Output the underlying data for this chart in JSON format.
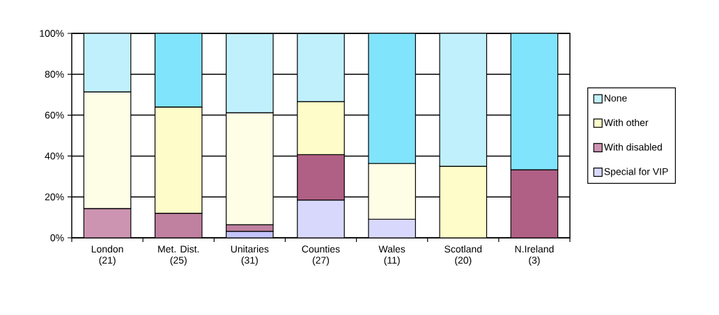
{
  "chart_data": {
    "type": "bar",
    "stacked": true,
    "categories": [
      "London\n(21)",
      "Met. Dist.\n(25)",
      "Unitaries\n(31)",
      "Counties\n(27)",
      "Wales\n(11)",
      "Scotland\n(20)",
      "N.Ireland\n(3)"
    ],
    "series": [
      {
        "name": "Special for VIP",
        "color": "#d8d8fc",
        "colors": [
          "#d8d8fc",
          "#d8d8fc",
          "#c4c4fc",
          "#d8d8fc",
          "#d8d8fc",
          "#d8d8fc",
          "#d8d8fc"
        ],
        "values": [
          0,
          0,
          3.2,
          18.5,
          9.1,
          0,
          0
        ]
      },
      {
        "name": "With disabled",
        "color": "#cc94b0",
        "colors": [
          "#cc94b0",
          "#c080a0",
          "#c080a0",
          "#b06084",
          "#b06084",
          "#b06084",
          "#b06084"
        ],
        "values": [
          14.3,
          12,
          3.2,
          22.2,
          0,
          0,
          33.3
        ]
      },
      {
        "name": "With other",
        "color": "#fefcc8",
        "colors": [
          "#fefee6",
          "#fefcc8",
          "#fefee6",
          "#fefcc8",
          "#fefee6",
          "#fefcc8",
          "#fefcc8"
        ],
        "values": [
          57.1,
          52,
          54.8,
          25.9,
          27.3,
          35,
          0
        ]
      },
      {
        "name": "None",
        "color": "#c0f0fc",
        "colors": [
          "#c0f0fc",
          "#80e4fc",
          "#c0f0fc",
          "#c0f0fc",
          "#80e4fc",
          "#c0f0fc",
          "#80e4fc"
        ],
        "values": [
          28.6,
          36,
          38.7,
          33.3,
          63.6,
          65,
          66.7
        ]
      }
    ],
    "ylim": [
      0,
      100
    ],
    "yticks": [
      {
        "value": 0,
        "label": "0%"
      },
      {
        "value": 20,
        "label": "20%"
      },
      {
        "value": 40,
        "label": "40%"
      },
      {
        "value": 60,
        "label": "60%"
      },
      {
        "value": 80,
        "label": "80%"
      },
      {
        "value": 100,
        "label": "100%"
      }
    ],
    "grid": "y",
    "legend": "right"
  }
}
